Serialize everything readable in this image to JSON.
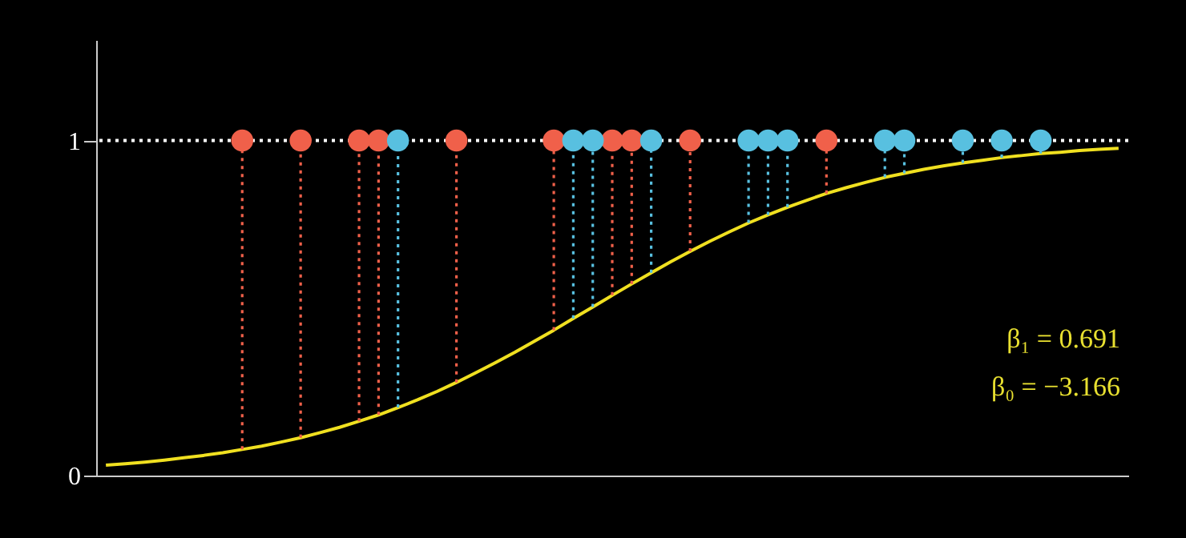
{
  "chart_data": {
    "type": "scatter",
    "ylim": [
      0,
      1.3
    ],
    "yticks": [
      0,
      1
    ],
    "tick_labels": "y",
    "grid": false,
    "marker": "circle",
    "categories": [
      null,
      null,
      null,
      null,
      null,
      null,
      null,
      null,
      null,
      null,
      null,
      null,
      null,
      null,
      null,
      null,
      null,
      null,
      null,
      null,
      null,
      null,
      null,
      null,
      null,
      null,
      null,
      null,
      null,
      null,
      null,
      null,
      null,
      null,
      null,
      null,
      null,
      null,
      null,
      null,
      null,
      null,
      null,
      null,
      null,
      null,
      null,
      null,
      null,
      null,
      null,
      null,
      null
    ],
    "series": [
      {
        "type": "line",
        "color": "#f0e020",
        "marker": "none",
        "line_style": "solid",
        "values": [
          0.031,
          0.035,
          0.04,
          0.046,
          0.053,
          0.06,
          0.068,
          0.078,
          0.088,
          0.1,
          0.113,
          0.128,
          0.144,
          0.162,
          0.181,
          0.203,
          0.226,
          0.251,
          0.278,
          0.307,
          0.337,
          0.368,
          0.401,
          0.434,
          0.469,
          0.503,
          0.538,
          0.572,
          0.605,
          0.638,
          0.669,
          0.699,
          0.727,
          0.754,
          0.778,
          0.801,
          0.822,
          0.842,
          0.859,
          0.875,
          0.89,
          0.902,
          0.914,
          0.924,
          0.933,
          0.941,
          0.949,
          0.955,
          0.961,
          0.965,
          0.97,
          0.974,
          0.977
        ]
      },
      {
        "color": "#f0604a",
        "values": [
          null,
          null,
          null,
          null,
          null,
          null,
          null,
          1,
          null,
          null,
          1,
          null,
          null,
          1,
          1,
          null,
          null,
          null,
          1,
          null,
          null,
          null,
          null,
          1,
          null,
          null,
          1,
          1,
          null,
          null,
          1,
          null,
          null,
          null,
          null,
          null,
          null,
          1,
          null,
          null,
          null,
          null,
          null,
          null,
          null,
          null,
          null,
          null,
          null,
          null,
          null,
          null,
          null
        ],
        "errors": [
          null,
          null,
          null,
          null,
          null,
          null,
          null,
          [
            0.078,
            1
          ],
          null,
          null,
          [
            0.113,
            1
          ],
          null,
          null,
          [
            0.162,
            1
          ],
          [
            0.181,
            1
          ],
          null,
          null,
          null,
          [
            0.278,
            1
          ],
          null,
          null,
          null,
          null,
          [
            0.434,
            1
          ],
          null,
          null,
          [
            0.538,
            1
          ],
          [
            0.572,
            1
          ],
          null,
          null,
          [
            0.669,
            1
          ],
          null,
          null,
          null,
          null,
          null,
          null,
          [
            0.842,
            1
          ],
          null,
          null,
          null,
          null,
          null,
          null,
          null,
          null,
          null,
          null,
          null,
          null,
          null,
          null,
          null
        ]
      },
      {
        "color": "#58c0e0",
        "values": [
          null,
          null,
          null,
          null,
          null,
          null,
          null,
          null,
          null,
          null,
          null,
          null,
          null,
          null,
          null,
          1,
          null,
          null,
          null,
          null,
          null,
          null,
          null,
          null,
          1,
          1,
          null,
          null,
          1,
          null,
          null,
          null,
          null,
          1,
          1,
          1,
          null,
          null,
          null,
          null,
          1,
          1,
          null,
          null,
          1,
          null,
          1,
          null,
          1,
          null,
          null,
          null,
          null
        ],
        "errors": [
          null,
          null,
          null,
          null,
          null,
          null,
          null,
          null,
          null,
          null,
          null,
          null,
          null,
          null,
          null,
          [
            0.203,
            1
          ],
          null,
          null,
          null,
          null,
          null,
          null,
          null,
          null,
          [
            0.469,
            1
          ],
          [
            0.503,
            1
          ],
          null,
          null,
          [
            0.605,
            1
          ],
          null,
          null,
          null,
          null,
          [
            0.754,
            1
          ],
          [
            0.778,
            1
          ],
          [
            0.801,
            1
          ],
          null,
          null,
          null,
          null,
          [
            0.89,
            1
          ],
          [
            0.902,
            1
          ],
          null,
          null,
          [
            0.933,
            1
          ],
          null,
          [
            0.949,
            1
          ],
          null,
          [
            0.961,
            1
          ],
          null,
          null,
          null,
          null
        ]
      }
    ],
    "ref_lines": [
      {
        "axis": "y",
        "value": 1,
        "color": "#ffffff",
        "line_style": "dotted"
      }
    ],
    "annotations": [
      "β₁ = 0.691",
      "β₀ = −3.166"
    ]
  }
}
